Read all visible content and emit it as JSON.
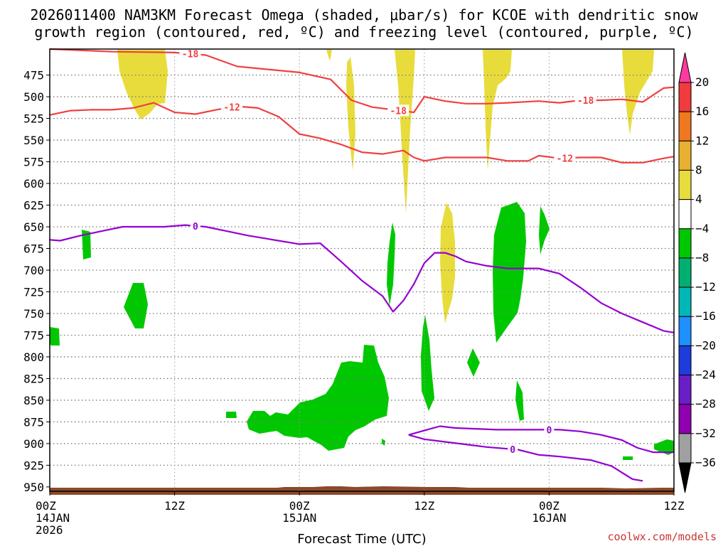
{
  "title_line1": "2026011400 NAM3KM Forecast Omega (shaded, μbar/s) for KCOE with dendritic snow",
  "title_line2": "growth region (contoured, red, ºC) and freezing level (contoured, purple, ºC)",
  "xlabel": "Forecast Time (UTC)",
  "credit": "coolwx.com/models",
  "chart_data": {
    "type": "heatmap",
    "title": "2026011400 NAM3KM Forecast Omega (shaded, μbar/s) for KCOE with dendritic snow growth region (contoured, red, ºC) and freezing level (contoured, purple, ºC)",
    "xlabel": "Forecast Time (UTC)",
    "ylabel": "",
    "x_range_hours": [
      0,
      60
    ],
    "ylim": [
      955,
      445
    ],
    "y_ticks": [
      475,
      500,
      525,
      550,
      575,
      600,
      625,
      650,
      675,
      700,
      725,
      750,
      775,
      800,
      825,
      850,
      875,
      900,
      925,
      950
    ],
    "x_ticks": [
      {
        "hour": 0,
        "l1": "00Z",
        "l2": "14JAN",
        "l3": "2026"
      },
      {
        "hour": 12,
        "l1": "12Z",
        "l2": "",
        "l3": ""
      },
      {
        "hour": 24,
        "l1": "00Z",
        "l2": "15JAN",
        "l3": ""
      },
      {
        "hour": 36,
        "l1": "12Z",
        "l2": "",
        "l3": ""
      },
      {
        "hour": 48,
        "l1": "00Z",
        "l2": "16JAN",
        "l3": ""
      },
      {
        "hour": 60,
        "l1": "12Z",
        "l2": "",
        "l3": ""
      }
    ],
    "grid": true,
    "colorbar": {
      "labels": [
        "20",
        "16",
        "12",
        "8",
        "4",
        "−4",
        "−8",
        "−12",
        "−16",
        "−20",
        "−24",
        "−28",
        "−32",
        "−36"
      ],
      "colors": [
        "#ff3aa0",
        "#f03c3c",
        "#f07820",
        "#e8b030",
        "#e8dc3c",
        "#ffffff",
        "#00c800",
        "#00b070",
        "#00b8b8",
        "#1e90ff",
        "#1e3cdc",
        "#6a1ec8",
        "#9000b0",
        "#a0a0a0"
      ]
    },
    "series": [
      {
        "name": "-18",
        "color": "#f04040",
        "points": [
          [
            0,
            445
          ],
          [
            6,
            448
          ],
          [
            12,
            449
          ],
          [
            15,
            452
          ],
          [
            18,
            465
          ],
          [
            24,
            472
          ],
          [
            27,
            480
          ],
          [
            29,
            504
          ],
          [
            31,
            512
          ],
          [
            33,
            515
          ],
          [
            35,
            518
          ],
          [
            36,
            500
          ],
          [
            38,
            505
          ],
          [
            40,
            508
          ],
          [
            42,
            508
          ],
          [
            44,
            507
          ],
          [
            47,
            505
          ],
          [
            49,
            507
          ],
          [
            51,
            504
          ],
          [
            53,
            504
          ],
          [
            55,
            503
          ],
          [
            57,
            506
          ],
          [
            59,
            490
          ],
          [
            60,
            489
          ]
        ],
        "labels_at_hour": [
          13.5,
          33.5,
          51.5
        ]
      },
      {
        "name": "-12",
        "color": "#f04040",
        "points": [
          [
            0,
            521
          ],
          [
            2,
            516
          ],
          [
            4,
            515
          ],
          [
            6,
            515
          ],
          [
            8,
            513
          ],
          [
            10,
            507
          ],
          [
            12,
            518
          ],
          [
            14,
            520
          ],
          [
            16,
            515
          ],
          [
            18,
            511
          ],
          [
            20,
            513
          ],
          [
            22,
            523
          ],
          [
            24,
            543
          ],
          [
            26,
            548
          ],
          [
            28,
            555
          ],
          [
            30,
            564
          ],
          [
            32,
            566
          ],
          [
            34,
            562
          ],
          [
            35,
            570
          ],
          [
            36,
            574
          ],
          [
            38,
            570
          ],
          [
            40,
            570
          ],
          [
            42,
            570
          ],
          [
            44,
            574
          ],
          [
            46,
            574
          ],
          [
            47,
            568
          ],
          [
            49,
            571
          ],
          [
            51,
            570
          ],
          [
            53,
            570
          ],
          [
            55,
            576
          ],
          [
            57,
            576
          ],
          [
            59,
            571
          ],
          [
            60,
            569
          ]
        ],
        "labels_at_hour": [
          17.5,
          49.5
        ]
      },
      {
        "name": "0",
        "color": "#9400d3",
        "points": [
          [
            0,
            665
          ],
          [
            1,
            666
          ],
          [
            3,
            660
          ],
          [
            5,
            655
          ],
          [
            7,
            650
          ],
          [
            9,
            650
          ],
          [
            11,
            650
          ],
          [
            13,
            648
          ],
          [
            15,
            650
          ],
          [
            17,
            655
          ],
          [
            19,
            660
          ],
          [
            21,
            664
          ],
          [
            24,
            670
          ],
          [
            26,
            669
          ],
          [
            28,
            690
          ],
          [
            30,
            712
          ],
          [
            32,
            730
          ],
          [
            33,
            748
          ],
          [
            34,
            735
          ],
          [
            35,
            716
          ],
          [
            36,
            692
          ],
          [
            37,
            680
          ],
          [
            38,
            680
          ],
          [
            39,
            684
          ],
          [
            40,
            690
          ],
          [
            42,
            695
          ],
          [
            44,
            698
          ],
          [
            47,
            698
          ],
          [
            49,
            704
          ],
          [
            51,
            720
          ],
          [
            53,
            738
          ],
          [
            55,
            750
          ],
          [
            57,
            760
          ],
          [
            59,
            770
          ],
          [
            60,
            772
          ]
        ],
        "labels_at_hour": [
          14
        ]
      },
      {
        "name": "0",
        "color": "#9400d3",
        "points": [
          [
            34.5,
            890
          ],
          [
            36,
            885
          ],
          [
            37.5,
            880
          ],
          [
            39,
            882
          ],
          [
            43,
            884
          ],
          [
            47,
            884
          ],
          [
            49,
            884
          ],
          [
            51,
            886
          ],
          [
            53,
            890
          ],
          [
            55,
            896
          ],
          [
            56.5,
            905
          ],
          [
            58,
            910
          ],
          [
            60,
            910
          ]
        ],
        "labels_at_hour": [
          48
        ]
      },
      {
        "name": "0",
        "color": "#9400d3",
        "points": [
          [
            34.5,
            890
          ],
          [
            36,
            895
          ],
          [
            38,
            898
          ],
          [
            40,
            901
          ],
          [
            42,
            904
          ],
          [
            45,
            907
          ],
          [
            47,
            913
          ],
          [
            49,
            915
          ],
          [
            52,
            919
          ],
          [
            54,
            926
          ],
          [
            56,
            941
          ],
          [
            57,
            943
          ]
        ],
        "labels_at_hour": [
          44.5
        ]
      }
    ]
  }
}
